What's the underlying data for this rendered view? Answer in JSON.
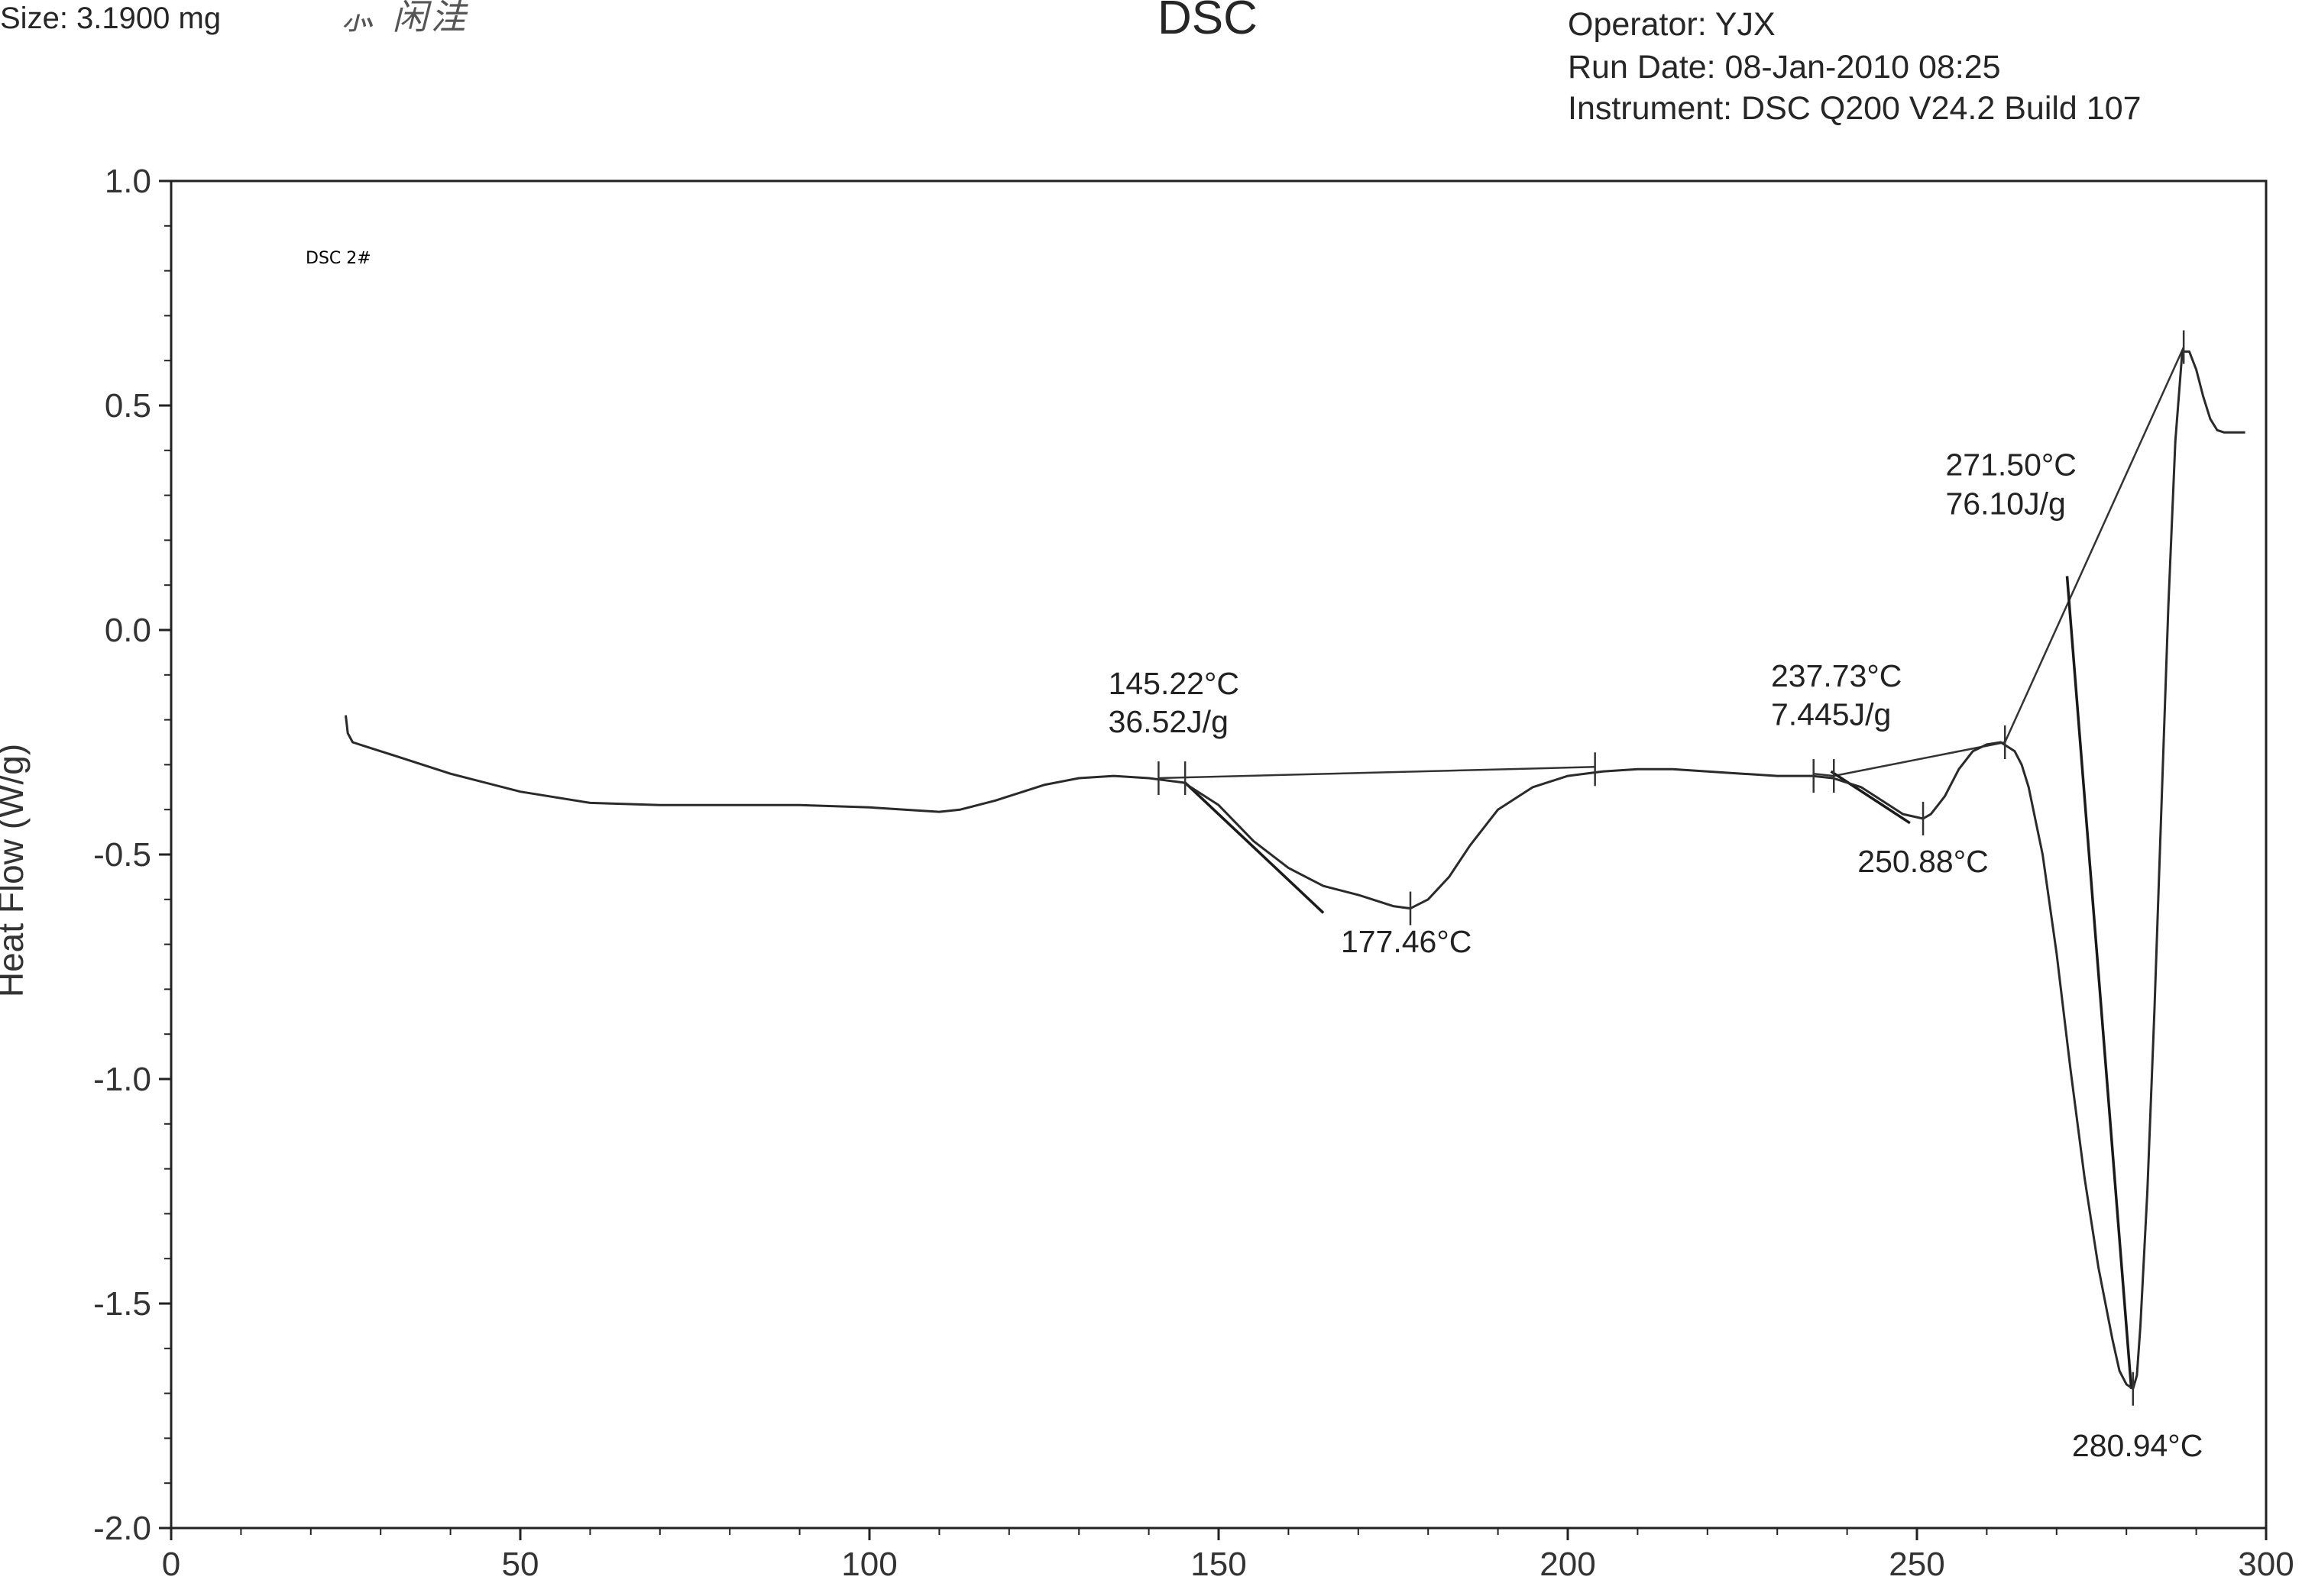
{
  "header": {
    "size_text": "Size:  3.1900 mg",
    "title": "DSC",
    "operator": "Operator: YJX",
    "run_date": "Run Date: 08-Jan-2010 08:25",
    "instrument": "Instrument: DSC Q200 V24.2 Build 107"
  },
  "chart_data": {
    "type": "line",
    "title": "DSC",
    "xlabel": "",
    "ylabel": "Heat Flow (W/g)",
    "xlim": [
      0,
      300
    ],
    "ylim": [
      -2.0,
      1.0
    ],
    "x_ticks": [
      0,
      50,
      100,
      150,
      200,
      250,
      300
    ],
    "y_ticks": [
      1.0,
      0.5,
      0.0,
      -0.5,
      -1.0,
      -1.5,
      -2.0
    ],
    "y_tick_labels": [
      "1.0",
      "0.5",
      "0.0",
      "-0.5",
      "-1.0",
      "-1.5",
      "-2.0"
    ],
    "grid": false,
    "sample_label": "DSC 2#",
    "series": [
      {
        "x": [
          25,
          25.3,
          26,
          28,
          32,
          40,
          50,
          60,
          70,
          80,
          90,
          100,
          105,
          110,
          113,
          118,
          125,
          130,
          135,
          140,
          145,
          150,
          155,
          160,
          165,
          170,
          173,
          175,
          177.46,
          180,
          183,
          186,
          190,
          195,
          200,
          205,
          210,
          215,
          220,
          225,
          230,
          235,
          238,
          242,
          246,
          248,
          250.88,
          252,
          254,
          256,
          258,
          260,
          262,
          264,
          265,
          266,
          268,
          270,
          272,
          274,
          276,
          278,
          279,
          280,
          280.94,
          281.5,
          282,
          283,
          284,
          285,
          286,
          287,
          288,
          289,
          290,
          291,
          292,
          293,
          294,
          295,
          296,
          297
        ],
        "y": [
          -0.19,
          -0.23,
          -0.25,
          -0.26,
          -0.28,
          -0.32,
          -0.36,
          -0.385,
          -0.39,
          -0.39,
          -0.39,
          -0.395,
          -0.4,
          -0.405,
          -0.4,
          -0.38,
          -0.345,
          -0.33,
          -0.325,
          -0.33,
          -0.34,
          -0.39,
          -0.47,
          -0.53,
          -0.57,
          -0.59,
          -0.605,
          -0.615,
          -0.62,
          -0.6,
          -0.55,
          -0.48,
          -0.4,
          -0.35,
          -0.325,
          -0.315,
          -0.31,
          -0.31,
          -0.315,
          -0.32,
          -0.325,
          -0.325,
          -0.33,
          -0.35,
          -0.39,
          -0.41,
          -0.42,
          -0.41,
          -0.37,
          -0.31,
          -0.27,
          -0.255,
          -0.25,
          -0.27,
          -0.3,
          -0.35,
          -0.5,
          -0.72,
          -0.98,
          -1.22,
          -1.42,
          -1.58,
          -1.65,
          -1.68,
          -1.69,
          -1.66,
          -1.55,
          -1.25,
          -0.85,
          -0.4,
          0.05,
          0.42,
          0.62,
          0.62,
          0.58,
          0.52,
          0.47,
          0.445,
          0.44,
          0.44,
          0.44,
          0.44
        ]
      }
    ],
    "baselines": [
      {
        "x": [
          141.4,
          203.9
        ],
        "y": [
          -0.33,
          -0.305
        ]
      },
      {
        "x": [
          235.2,
          238.1,
          262.6,
          288.2
        ],
        "y": [
          -0.32,
          -0.325,
          -0.25,
          0.63
        ]
      }
    ],
    "tangents": [
      {
        "x": [
          145.2,
          165.0
        ],
        "y": [
          -0.34,
          -0.63
        ]
      },
      {
        "x": [
          237.7,
          249.0
        ],
        "y": [
          -0.315,
          -0.43
        ]
      },
      {
        "x": [
          271.5,
          280.7
        ],
        "y": [
          0.12,
          -1.69
        ]
      }
    ],
    "tick_marks": [
      {
        "x": 141.4,
        "y": -0.33
      },
      {
        "x": 145.2,
        "y": -0.33
      },
      {
        "x": 177.46,
        "y": -0.62
      },
      {
        "x": 203.9,
        "y": -0.31
      },
      {
        "x": 235.2,
        "y": -0.325
      },
      {
        "x": 238.1,
        "y": -0.325
      },
      {
        "x": 250.88,
        "y": -0.42
      },
      {
        "x": 262.6,
        "y": -0.25
      },
      {
        "x": 280.94,
        "y": -1.69
      },
      {
        "x": 288.2,
        "y": 0.63
      }
    ],
    "annotations": [
      {
        "text": "145.22°C",
        "x": 134.2,
        "y": -0.143
      },
      {
        "text": "36.52J/g",
        "x": 134.2,
        "y": -0.228
      },
      {
        "text": "177.46°C",
        "x": 167.5,
        "y": -0.718
      },
      {
        "text": "237.73°C",
        "x": 229.1,
        "y": -0.126
      },
      {
        "text": "7.445J/g",
        "x": 229.1,
        "y": -0.212
      },
      {
        "text": "250.88°C",
        "x": 241.5,
        "y": -0.539
      },
      {
        "text": "271.50°C",
        "x": 254.1,
        "y": 0.344
      },
      {
        "text": "76.10J/g",
        "x": 254.1,
        "y": 0.258
      },
      {
        "text": "280.94°C",
        "x": 272.2,
        "y": -1.84
      }
    ]
  }
}
